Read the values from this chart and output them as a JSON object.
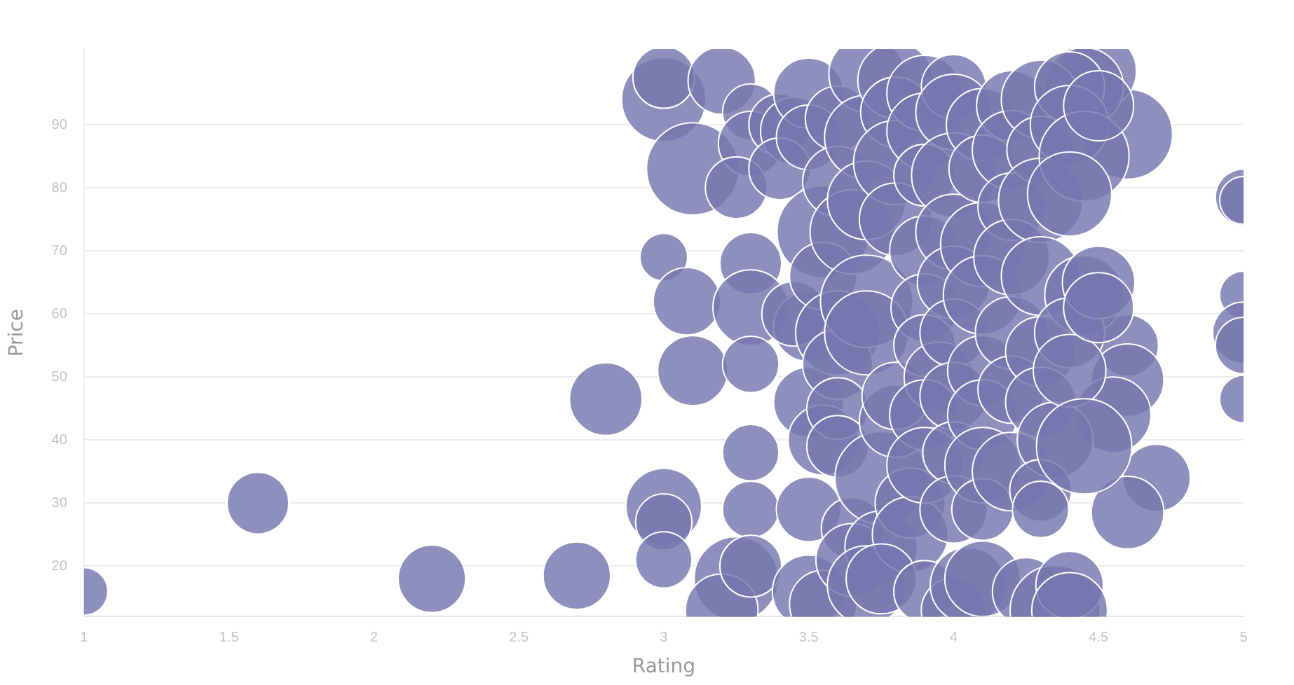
{
  "chart_data": {
    "type": "bubble",
    "xlabel": "Rating",
    "ylabel": "Price",
    "xlim": [
      1,
      5
    ],
    "xticks": [
      1,
      1.5,
      2,
      2.5,
      3,
      3.5,
      4,
      4.5,
      5
    ],
    "ylim": [
      12,
      102
    ],
    "yticks": [
      20,
      30,
      40,
      50,
      60,
      70,
      80,
      90
    ],
    "grid": "y",
    "legend": false,
    "series": [
      {
        "color": "#7676b0",
        "x": [
          1,
          1.6,
          2.2,
          2.7,
          2.8,
          3,
          3,
          3,
          3,
          3,
          3,
          5,
          5,
          5,
          5,
          5,
          5,
          4.7,
          4.6,
          4.6,
          4.6,
          4.55,
          4.6,
          4.5,
          4.45,
          3.1,
          3.2,
          3.08,
          3.1,
          3.3,
          3.3,
          3.25,
          3.3,
          3.3,
          3.3,
          3.3,
          3.3,
          3.25,
          3.2,
          3.3,
          3.4,
          3.45,
          3.4,
          3.5,
          3.45,
          3.5,
          3.5,
          3.55,
          3.55,
          3.5,
          3.55,
          3.5,
          3.5,
          3.55,
          3.6,
          3.6,
          3.65,
          3.6,
          3.6,
          3.6,
          3.6,
          3.65,
          3.65,
          3.7,
          3.7,
          3.7,
          3.7,
          3.75,
          3.7,
          3.75,
          3.7,
          3.8,
          3.8,
          3.8,
          3.8,
          3.8,
          3.8,
          3.85,
          3.85,
          3.75,
          3.9,
          3.9,
          3.9,
          3.9,
          3.9,
          3.9,
          3.95,
          3.9,
          3.9,
          3.9,
          4,
          4,
          4,
          4,
          4,
          4,
          4,
          4,
          4,
          4,
          4.05,
          4.1,
          4.1,
          4.1,
          4.1,
          4.1,
          4.1,
          4.1,
          4.1,
          4.1,
          4.2,
          4.2,
          4.2,
          4.2,
          4.2,
          4.2,
          4.2,
          4.25,
          4.3,
          4.3,
          4.3,
          4.3,
          4.3,
          4.3,
          4.35,
          4.3,
          4.3,
          4.35,
          4.4,
          4.4,
          4.45,
          4.4,
          4.45,
          4.4,
          4.4,
          4.45,
          4.4,
          4.4,
          4.5,
          4.5,
          4.5
        ],
        "values": [
          16,
          30,
          18,
          18.5,
          46.5,
          94,
          97.5,
          69,
          29.5,
          27,
          21,
          78.5,
          78,
          63,
          57,
          55,
          46.5,
          34,
          28.5,
          55,
          49.5,
          44,
          88.5,
          98.5,
          96,
          83,
          97,
          62,
          51,
          92,
          87,
          80,
          68,
          61,
          52,
          38,
          29,
          18,
          13,
          20,
          90,
          89,
          83,
          58,
          60,
          95,
          88,
          73,
          66,
          46,
          40,
          29,
          16,
          14,
          91,
          81,
          73,
          57,
          52,
          45,
          39,
          26,
          21,
          98,
          88,
          78,
          62,
          34,
          57,
          23,
          17,
          97,
          92,
          84,
          75,
          43,
          47,
          30,
          25,
          18,
          95,
          89,
          82,
          70,
          61,
          55,
          50,
          44,
          36,
          16,
          96,
          92,
          82,
          73,
          65,
          57,
          47,
          38,
          29,
          13,
          17,
          90,
          83,
          71,
          63,
          51,
          44,
          36,
          29,
          18,
          93,
          86,
          77,
          69,
          57,
          48,
          35,
          16,
          94,
          86,
          78,
          66,
          54,
          46,
          40,
          32,
          29,
          13,
          96,
          90,
          85,
          79,
          63,
          57,
          51,
          39,
          17,
          13,
          65,
          61,
          93
        ],
        "sizes": [
          0.25,
          0.42,
          0.5,
          0.5,
          0.58,
          0.78,
          0.42,
          0.25,
          0.63,
          0.35,
          0.35,
          0.35,
          0.25,
          0.25,
          0.42,
          0.35,
          0.25,
          0.5,
          0.58,
          0.42,
          0.58,
          0.63,
          0.89,
          0.63,
          0.68,
          0.94,
          0.5,
          0.5,
          0.54,
          0.35,
          0.46,
          0.42,
          0.42,
          0.63,
          0.35,
          0.35,
          0.35,
          0.78,
          0.58,
          0.42,
          0.42,
          0.5,
          0.42,
          0.54,
          0.46,
          0.54,
          0.46,
          0.94,
          0.5,
          0.54,
          0.54,
          0.46,
          0.58,
          0.5,
          0.46,
          0.54,
          0.78,
          0.78,
          0.54,
          0.42,
          0.42,
          0.42,
          0.58,
          0.63,
          0.78,
          0.68,
          0.94,
          0.94,
          0.78,
          0.58,
          0.68,
          0.63,
          0.54,
          0.78,
          0.58,
          0.58,
          0.5,
          0.54,
          0.63,
          0.54,
          0.63,
          0.63,
          0.42,
          0.54,
          0.5,
          0.42,
          0.54,
          0.54,
          0.63,
          0.42,
          0.46,
          0.63,
          0.78,
          0.63,
          0.58,
          0.5,
          0.5,
          0.42,
          0.5,
          0.46,
          0.63,
          0.58,
          0.5,
          0.78,
          0.68,
          0.54,
          0.54,
          0.63,
          0.42,
          0.63,
          0.54,
          0.68,
          0.5,
          0.63,
          0.58,
          0.5,
          0.68,
          0.5,
          0.68,
          0.5,
          0.78,
          0.68,
          0.54,
          0.54,
          0.63,
          0.42,
          0.35,
          0.89,
          0.54,
          0.68,
          0.89,
          0.78,
          0.68,
          0.54,
          0.58,
          1,
          0.5,
          0.63,
          0.58,
          0.54,
          0.54
        ]
      }
    ]
  }
}
